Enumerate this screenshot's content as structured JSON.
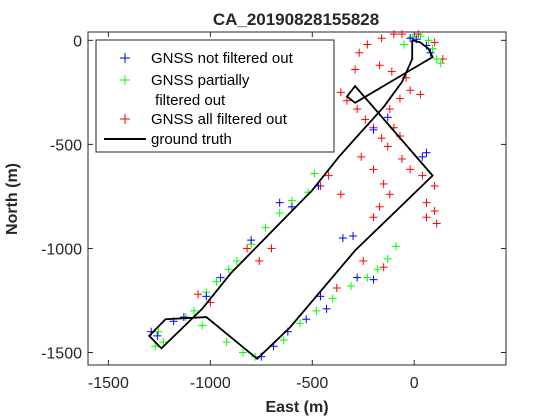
{
  "chart_data": {
    "type": "scatter",
    "title": "CA_20190828155828",
    "xlabel": "East (m)",
    "ylabel": "North (m)",
    "xlim": [
      -1600,
      450
    ],
    "ylim": [
      -1560,
      40
    ],
    "xticks": [
      -1500,
      -1000,
      -500,
      0
    ],
    "yticks": [
      0,
      -500,
      -1000,
      -1500
    ],
    "legend_position": "top-left",
    "grid": false,
    "series": [
      {
        "name": "GNSS not filtered out",
        "marker": "+",
        "color": "#0000ff",
        "points": [
          [
            -20,
            10
          ],
          [
            10,
            5
          ],
          [
            60,
            -25
          ],
          [
            80,
            -60
          ],
          [
            -200,
            -430
          ],
          [
            -130,
            -370
          ],
          [
            -300,
            -940
          ],
          [
            -350,
            -950
          ],
          [
            -600,
            -800
          ],
          [
            -660,
            -780
          ],
          [
            -750,
            -1520
          ],
          [
            -690,
            -1470
          ],
          [
            -620,
            -1400
          ],
          [
            -530,
            -1340
          ],
          [
            -1130,
            -1330
          ],
          [
            -1180,
            -1350
          ],
          [
            -1260,
            -1420
          ],
          [
            -1290,
            -1400
          ],
          [
            -200,
            -1150
          ],
          [
            -280,
            -1140
          ],
          [
            -460,
            -1230
          ],
          [
            -800,
            -960
          ],
          [
            -950,
            -1140
          ],
          [
            -1020,
            -1230
          ],
          [
            -430,
            -1290
          ],
          [
            -470,
            -700
          ],
          [
            60,
            -540
          ],
          [
            40,
            -560
          ]
        ]
      },
      {
        "name": "GNSS partially\n filtered out",
        "marker": "+",
        "color": "#00ff00",
        "points": [
          [
            -1230,
            -1450
          ],
          [
            -1270,
            -1470
          ],
          [
            -1255,
            -1400
          ],
          [
            -1080,
            -1300
          ],
          [
            -1120,
            -1330
          ],
          [
            -1040,
            -1370
          ],
          [
            -920,
            -1450
          ],
          [
            -840,
            -1500
          ],
          [
            -780,
            -1520
          ],
          [
            -640,
            -1440
          ],
          [
            -560,
            -1360
          ],
          [
            -480,
            -1300
          ],
          [
            -400,
            -1240
          ],
          [
            -310,
            -1180
          ],
          [
            -230,
            -1140
          ],
          [
            -180,
            -1100
          ],
          [
            -130,
            -1050
          ],
          [
            -90,
            -990
          ],
          [
            -1020,
            -1210
          ],
          [
            -970,
            -1160
          ],
          [
            -910,
            -1100
          ],
          [
            -870,
            -1060
          ],
          [
            -800,
            -980
          ],
          [
            -730,
            -900
          ],
          [
            -660,
            -830
          ],
          [
            -600,
            -770
          ],
          [
            -520,
            -730
          ],
          [
            -490,
            -640
          ],
          [
            130,
            -110
          ],
          [
            110,
            -90
          ],
          [
            90,
            -40
          ],
          [
            70,
            0
          ],
          [
            30,
            20
          ],
          [
            -10,
            15
          ],
          [
            -50,
            -20
          ]
        ]
      },
      {
        "name": "GNSS all filtered out",
        "marker": "+",
        "color": "#ff0000",
        "points": [
          [
            -290,
            -140
          ],
          [
            -270,
            -60
          ],
          [
            -230,
            -20
          ],
          [
            -160,
            10
          ],
          [
            -100,
            30
          ],
          [
            -60,
            30
          ],
          [
            20,
            30
          ],
          [
            100,
            -10
          ],
          [
            140,
            -90
          ],
          [
            -330,
            -290
          ],
          [
            -360,
            -250
          ],
          [
            -280,
            -330
          ],
          [
            -240,
            -380
          ],
          [
            -200,
            -420
          ],
          [
            -160,
            -470
          ],
          [
            -130,
            -510
          ],
          [
            -60,
            -570
          ],
          [
            -20,
            -620
          ],
          [
            40,
            -650
          ],
          [
            100,
            -700
          ],
          [
            -120,
            -330
          ],
          [
            -70,
            -280
          ],
          [
            -20,
            -240
          ],
          [
            30,
            -260
          ],
          [
            -100,
            -420
          ],
          [
            -70,
            -460
          ],
          [
            -260,
            -560
          ],
          [
            -200,
            -620
          ],
          [
            -150,
            -690
          ],
          [
            -120,
            -740
          ],
          [
            -170,
            -800
          ],
          [
            -200,
            -850
          ],
          [
            60,
            -780
          ],
          [
            100,
            -820
          ],
          [
            110,
            -880
          ],
          [
            60,
            -850
          ],
          [
            -420,
            -650
          ],
          [
            -460,
            -700
          ],
          [
            -360,
            -740
          ],
          [
            -700,
            -1000
          ],
          [
            -760,
            -1060
          ],
          [
            -820,
            -1000
          ],
          [
            -1060,
            -1220
          ],
          [
            -1000,
            -1260
          ],
          [
            -150,
            -1090
          ],
          [
            -250,
            -1060
          ],
          [
            -380,
            -1190
          ],
          [
            -170,
            -120
          ],
          [
            -110,
            -150
          ],
          [
            -40,
            -180
          ]
        ]
      },
      {
        "name": "ground truth",
        "marker": "line",
        "color": "#000000",
        "points": [
          [
            -10,
            0
          ],
          [
            30,
            -10
          ],
          [
            70,
            -40
          ],
          [
            90,
            -80
          ],
          [
            -290,
            -300
          ],
          [
            -330,
            -270
          ],
          [
            -290,
            -220
          ],
          [
            90,
            -650
          ],
          [
            -290,
            -1010
          ],
          [
            -610,
            -1380
          ],
          [
            -770,
            -1530
          ],
          [
            -1020,
            -1330
          ],
          [
            -1220,
            -1340
          ],
          [
            -1300,
            -1420
          ],
          [
            -1240,
            -1480
          ],
          [
            -1040,
            -1290
          ],
          [
            -900,
            -1120
          ],
          [
            -700,
            -920
          ],
          [
            -500,
            -720
          ],
          [
            -370,
            -560
          ],
          [
            -260,
            -440
          ],
          [
            -150,
            -320
          ],
          [
            -60,
            -200
          ],
          [
            -10,
            -90
          ],
          [
            -10,
            0
          ]
        ]
      }
    ]
  }
}
